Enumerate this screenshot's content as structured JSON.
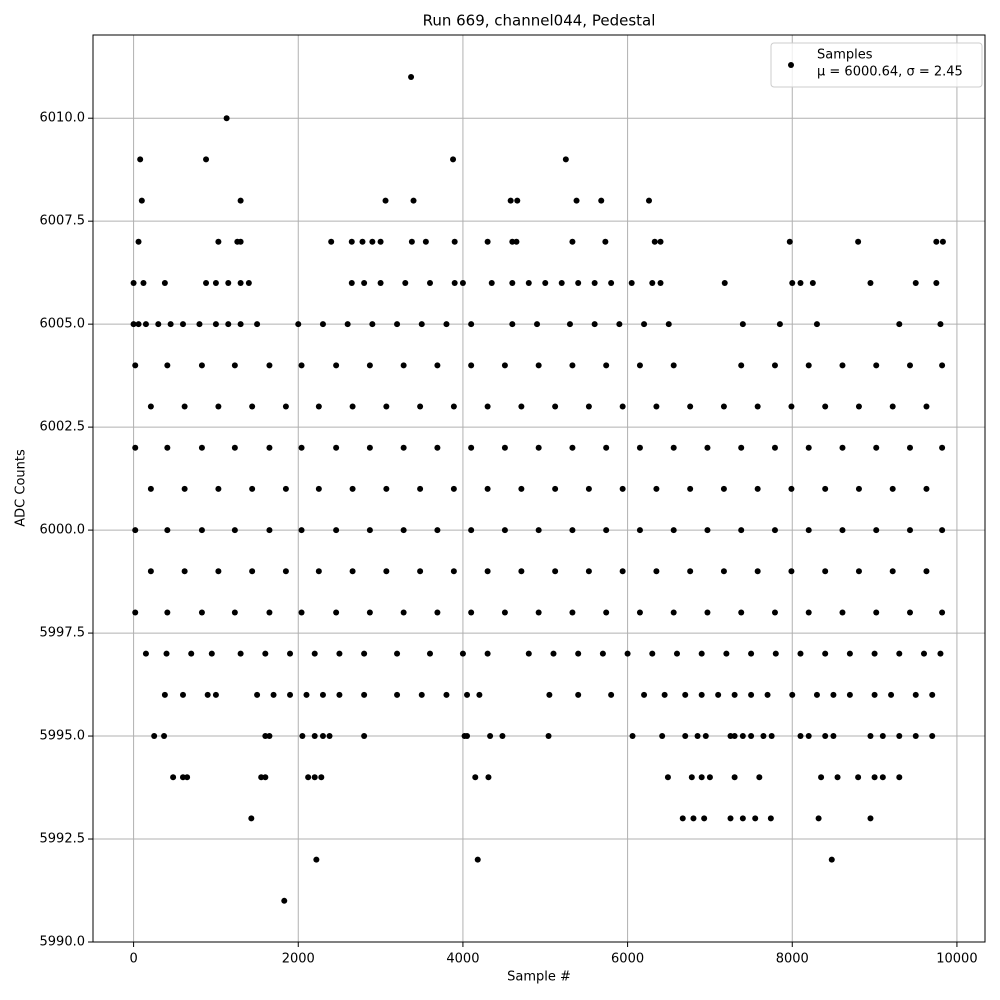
{
  "chart_data": {
    "type": "scatter",
    "title": "Run 669, channel044, Pedestal",
    "x_label": "Sample #",
    "y_label": "ADC Counts",
    "xlim": [
      -493,
      10341
    ],
    "ylim": [
      5990,
      6012.02
    ],
    "xticks": [
      0,
      2000,
      4000,
      6000,
      8000,
      10000
    ],
    "yticks": [
      {
        "value": 5990,
        "label": "5990.0"
      },
      {
        "value": 5992.5,
        "label": "5992.5"
      },
      {
        "value": 5995,
        "label": "5995.0"
      },
      {
        "value": 5997.5,
        "label": "5997.5"
      },
      {
        "value": 6000,
        "label": "6000.0"
      },
      {
        "value": 6002.5,
        "label": "6002.5"
      },
      {
        "value": 6005,
        "label": "6005.0"
      },
      {
        "value": 6007.5,
        "label": "6007.5"
      },
      {
        "value": 6010,
        "label": "6010.0"
      }
    ],
    "grid": true,
    "legend": "upper right",
    "legend_note": "μ = 6000.64, σ = 2.45",
    "series": [
      {
        "name": "Samples",
        "color": "#000000",
        "x": [
          3370,
          1130,
          80,
          880,
          3880,
          5250,
          100,
          1300,
          3060,
          3400,
          4580,
          4660,
          5380,
          5680,
          6260,
          60,
          1030,
          1260,
          1300,
          2400,
          2650,
          2780,
          2900,
          3000,
          3380,
          3550,
          3900,
          4300,
          4600,
          4650,
          5330,
          5730,
          6330,
          6400,
          7970,
          8800,
          9750,
          9830,
          0,
          120,
          380,
          880,
          1000,
          1150,
          1300,
          1400,
          2650,
          2800,
          3000,
          3300,
          3600,
          3900,
          4000,
          4350,
          4600,
          4800,
          5000,
          5200,
          5400,
          5600,
          5800,
          6050,
          6300,
          6400,
          7180,
          8000,
          8100,
          8250,
          8950,
          9500,
          9750,
          0,
          60,
          150,
          300,
          450,
          600,
          800,
          1000,
          1150,
          1300,
          1500,
          2000,
          2300,
          2600,
          2900,
          3200,
          3500,
          3800,
          4100,
          4600,
          4900,
          5300,
          5600,
          5900,
          6200,
          6500,
          7400,
          7850,
          8300,
          9300,
          9800,
          20,
          410,
          830,
          1230,
          1650,
          2040,
          2460,
          2870,
          3280,
          3690,
          4100,
          4510,
          4920,
          5330,
          5740,
          6150,
          6560,
          7380,
          7790,
          8200,
          8610,
          9020,
          9430,
          9820,
          210,
          620,
          1030,
          1440,
          1850,
          2250,
          2660,
          3070,
          3480,
          3890,
          4300,
          4710,
          5120,
          5530,
          5940,
          6350,
          6760,
          7170,
          7580,
          7990,
          8400,
          8810,
          9220,
          9630,
          20,
          410,
          830,
          1230,
          1650,
          2040,
          2460,
          2870,
          3280,
          3690,
          4100,
          4510,
          4920,
          5330,
          5740,
          6150,
          6560,
          6970,
          7380,
          7790,
          8200,
          8610,
          9020,
          9430,
          9820,
          210,
          620,
          1030,
          1440,
          1850,
          2250,
          2660,
          3070,
          3480,
          3890,
          4300,
          4710,
          5120,
          5530,
          5940,
          6350,
          6760,
          7170,
          7580,
          7990,
          8400,
          8810,
          9220,
          9630,
          20,
          410,
          830,
          1230,
          1650,
          2040,
          2460,
          2870,
          3280,
          3690,
          4100,
          4510,
          4920,
          5330,
          5740,
          6150,
          6560,
          6970,
          7380,
          7790,
          8200,
          8610,
          9020,
          9430,
          9820,
          210,
          620,
          1030,
          1440,
          1850,
          2250,
          2660,
          3070,
          3480,
          3890,
          4300,
          4710,
          5120,
          5530,
          5940,
          6350,
          6760,
          7170,
          7580,
          7990,
          8400,
          8810,
          9220,
          9630,
          20,
          410,
          830,
          1230,
          1650,
          2040,
          2460,
          2870,
          3280,
          3690,
          4100,
          4510,
          4920,
          5330,
          5740,
          6150,
          6560,
          6970,
          7380,
          7790,
          8200,
          8610,
          9020,
          9430,
          9820,
          150,
          400,
          700,
          950,
          1300,
          1600,
          1900,
          2200,
          2500,
          2800,
          3200,
          3600,
          4000,
          4300,
          4800,
          5100,
          5400,
          5700,
          6000,
          6300,
          6600,
          6900,
          7200,
          7500,
          7800,
          8100,
          8400,
          8700,
          9000,
          9300,
          9600,
          9800,
          380,
          600,
          900,
          1000,
          1500,
          1700,
          1900,
          2100,
          2300,
          2500,
          2800,
          3200,
          3500,
          3800,
          4050,
          4200,
          5050,
          5400,
          5800,
          6200,
          6450,
          6700,
          6900,
          7100,
          7300,
          7500,
          7700,
          8000,
          8300,
          8500,
          8700,
          9000,
          9200,
          9500,
          9700,
          250,
          370,
          1600,
          1650,
          2050,
          2200,
          2300,
          2380,
          2800,
          4020,
          4050,
          4330,
          4480,
          5040,
          6060,
          6420,
          6700,
          6850,
          6950,
          7250,
          7300,
          7400,
          7500,
          7650,
          7750,
          8100,
          8200,
          8400,
          8500,
          8950,
          9100,
          9300,
          9500,
          9700,
          480,
          600,
          650,
          1550,
          1600,
          2120,
          2200,
          2280,
          4150,
          4310,
          6490,
          6780,
          6900,
          7000,
          7300,
          7600,
          8350,
          8550,
          8800,
          9000,
          9100,
          9300,
          1430,
          6670,
          6800,
          6930,
          7250,
          7400,
          7550,
          7740,
          8320,
          8950,
          2220,
          4180,
          8480,
          1830
        ],
        "values": [
          6011,
          6010,
          6009,
          6009,
          6009,
          6009,
          6008,
          6008,
          6008,
          6008,
          6008,
          6008,
          6008,
          6008,
          6008,
          6007,
          6007,
          6007,
          6007,
          6007,
          6007,
          6007,
          6007,
          6007,
          6007,
          6007,
          6007,
          6007,
          6007,
          6007,
          6007,
          6007,
          6007,
          6007,
          6007,
          6007,
          6007,
          6007,
          6006,
          6006,
          6006,
          6006,
          6006,
          6006,
          6006,
          6006,
          6006,
          6006,
          6006,
          6006,
          6006,
          6006,
          6006,
          6006,
          6006,
          6006,
          6006,
          6006,
          6006,
          6006,
          6006,
          6006,
          6006,
          6006,
          6006,
          6006,
          6006,
          6006,
          6006,
          6006,
          6006,
          6005,
          6005,
          6005,
          6005,
          6005,
          6005,
          6005,
          6005,
          6005,
          6005,
          6005,
          6005,
          6005,
          6005,
          6005,
          6005,
          6005,
          6005,
          6005,
          6005,
          6005,
          6005,
          6005,
          6005,
          6005,
          6005,
          6005,
          6005,
          6005,
          6005,
          6005,
          6004,
          6004,
          6004,
          6004,
          6004,
          6004,
          6004,
          6004,
          6004,
          6004,
          6004,
          6004,
          6004,
          6004,
          6004,
          6004,
          6004,
          6004,
          6004,
          6004,
          6004,
          6004,
          6004,
          6004,
          6003,
          6003,
          6003,
          6003,
          6003,
          6003,
          6003,
          6003,
          6003,
          6003,
          6003,
          6003,
          6003,
          6003,
          6003,
          6003,
          6003,
          6003,
          6003,
          6003,
          6003,
          6003,
          6003,
          6003,
          6002,
          6002,
          6002,
          6002,
          6002,
          6002,
          6002,
          6002,
          6002,
          6002,
          6002,
          6002,
          6002,
          6002,
          6002,
          6002,
          6002,
          6002,
          6002,
          6002,
          6002,
          6002,
          6002,
          6002,
          6002,
          6001,
          6001,
          6001,
          6001,
          6001,
          6001,
          6001,
          6001,
          6001,
          6001,
          6001,
          6001,
          6001,
          6001,
          6001,
          6001,
          6001,
          6001,
          6001,
          6001,
          6001,
          6001,
          6001,
          6001,
          6000,
          6000,
          6000,
          6000,
          6000,
          6000,
          6000,
          6000,
          6000,
          6000,
          6000,
          6000,
          6000,
          6000,
          6000,
          6000,
          6000,
          6000,
          6000,
          6000,
          6000,
          6000,
          6000,
          6000,
          6000,
          5999,
          5999,
          5999,
          5999,
          5999,
          5999,
          5999,
          5999,
          5999,
          5999,
          5999,
          5999,
          5999,
          5999,
          5999,
          5999,
          5999,
          5999,
          5999,
          5999,
          5999,
          5999,
          5999,
          5999,
          5998,
          5998,
          5998,
          5998,
          5998,
          5998,
          5998,
          5998,
          5998,
          5998,
          5998,
          5998,
          5998,
          5998,
          5998,
          5998,
          5998,
          5998,
          5998,
          5998,
          5998,
          5998,
          5998,
          5998,
          5998,
          5997,
          5997,
          5997,
          5997,
          5997,
          5997,
          5997,
          5997,
          5997,
          5997,
          5997,
          5997,
          5997,
          5997,
          5997,
          5997,
          5997,
          5997,
          5997,
          5997,
          5997,
          5997,
          5997,
          5997,
          5997,
          5997,
          5997,
          5997,
          5997,
          5997,
          5997,
          5997,
          5996,
          5996,
          5996,
          5996,
          5996,
          5996,
          5996,
          5996,
          5996,
          5996,
          5996,
          5996,
          5996,
          5996,
          5996,
          5996,
          5996,
          5996,
          5996,
          5996,
          5996,
          5996,
          5996,
          5996,
          5996,
          5996,
          5996,
          5996,
          5996,
          5996,
          5996,
          5996,
          5996,
          5996,
          5996,
          5995,
          5995,
          5995,
          5995,
          5995,
          5995,
          5995,
          5995,
          5995,
          5995,
          5995,
          5995,
          5995,
          5995,
          5995,
          5995,
          5995,
          5995,
          5995,
          5995,
          5995,
          5995,
          5995,
          5995,
          5995,
          5995,
          5995,
          5995,
          5995,
          5995,
          5995,
          5995,
          5995,
          5995,
          5994,
          5994,
          5994,
          5994,
          5994,
          5994,
          5994,
          5994,
          5994,
          5994,
          5994,
          5994,
          5994,
          5994,
          5994,
          5994,
          5994,
          5994,
          5994,
          5994,
          5994,
          5994,
          5993,
          5993,
          5993,
          5993,
          5993,
          5993,
          5993,
          5993,
          5993,
          5993,
          5992,
          5992,
          5992,
          5991
        ]
      }
    ]
  }
}
